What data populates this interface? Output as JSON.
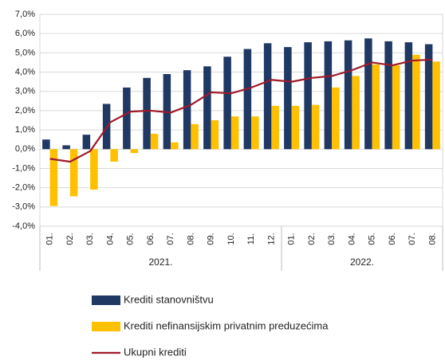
{
  "chart_data": {
    "type": "bar-line",
    "groups": [
      {
        "name": "2021.",
        "categories": [
          "01.",
          "02.",
          "03.",
          "04.",
          "05.",
          "06.",
          "07.",
          "08.",
          "09.",
          "10.",
          "11.",
          "12."
        ]
      },
      {
        "name": "2022.",
        "categories": [
          "01.",
          "02.",
          "03.",
          "04.",
          "05.",
          "06.",
          "07.",
          "08."
        ]
      }
    ],
    "series": [
      {
        "name": "Krediti stanovništvu",
        "type": "bar",
        "color": "#1f3864",
        "values": [
          0.5,
          0.2,
          0.75,
          2.35,
          3.2,
          3.7,
          3.9,
          4.1,
          4.3,
          4.8,
          5.2,
          5.5,
          5.3,
          5.55,
          5.6,
          5.65,
          5.75,
          5.6,
          5.55,
          5.45
        ]
      },
      {
        "name": "Krediti nefinansijskim privatnim preduzećima",
        "type": "bar",
        "color": "#ffc000",
        "values": [
          -2.95,
          -2.45,
          -2.1,
          -0.65,
          -0.2,
          0.8,
          0.35,
          1.3,
          1.5,
          1.7,
          1.7,
          2.25,
          2.25,
          2.3,
          3.2,
          3.8,
          4.4,
          4.35,
          4.9,
          4.55
        ]
      },
      {
        "name": "Ukupni krediti",
        "type": "line",
        "color": "#a0192a",
        "values": [
          -0.5,
          -0.65,
          -0.1,
          1.4,
          1.95,
          2.0,
          1.9,
          2.3,
          2.95,
          2.9,
          3.2,
          3.6,
          3.5,
          3.7,
          3.8,
          4.1,
          4.5,
          4.35,
          4.6,
          4.65
        ]
      }
    ],
    "ylim": [
      -4,
      7
    ],
    "yticks": [
      {
        "value": -4,
        "label": "-4,0%"
      },
      {
        "value": -3,
        "label": "-3,0%"
      },
      {
        "value": -2,
        "label": "-2,0%"
      },
      {
        "value": -1,
        "label": "-1,0%"
      },
      {
        "value": 0,
        "label": "0,0%"
      },
      {
        "value": 1,
        "label": "1,0%"
      },
      {
        "value": 2,
        "label": "2,0%"
      },
      {
        "value": 3,
        "label": "3,0%"
      },
      {
        "value": 4,
        "label": "4,0%"
      },
      {
        "value": 5,
        "label": "5,0%"
      },
      {
        "value": 6,
        "label": "6,0%"
      },
      {
        "value": 7,
        "label": "7,0%"
      }
    ],
    "grid": true
  }
}
